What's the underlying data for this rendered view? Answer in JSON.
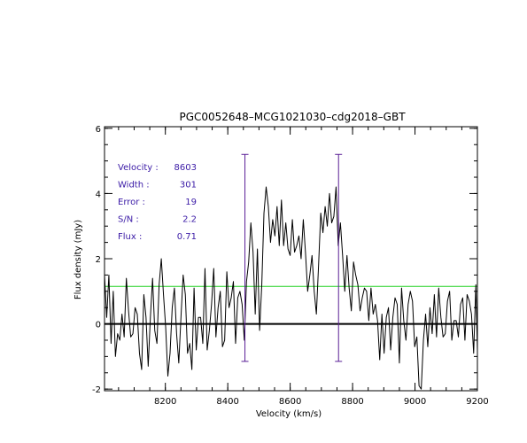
{
  "chart_data": {
    "type": "line",
    "title": "PGC0052648–MCG1021030–cdg2018–GBT",
    "xlabel": "Velocity (km/s)",
    "ylabel": "Flux density (mJy)",
    "xlim": [
      8005,
      9200
    ],
    "ylim": [
      -2.05,
      6.05
    ],
    "xticks": [
      8200,
      8400,
      8600,
      8800,
      9000,
      9200
    ],
    "yticks": [
      -2,
      0,
      2,
      4,
      6
    ],
    "x_minor_step": 50,
    "y_minor_step": 0.5,
    "zero_line": 0,
    "baseline_level": 1.15,
    "markers": [
      {
        "x": 8455,
        "y_top": 5.2,
        "y_bottom": -1.15
      },
      {
        "x": 8755,
        "y_top": 5.2,
        "y_bottom": -1.15
      }
    ],
    "series": [
      {
        "x": [
          8005,
          8012,
          8019,
          8026,
          8033,
          8040,
          8047,
          8054,
          8061,
          8068,
          8075,
          8082,
          8089,
          8096,
          8103,
          8110,
          8117,
          8124,
          8131,
          8138,
          8145,
          8152,
          8159,
          8166,
          8173,
          8180,
          8187,
          8194,
          8201,
          8208,
          8215,
          8222,
          8229,
          8236,
          8243,
          8250,
          8257,
          8264,
          8271,
          8278,
          8285,
          8292,
          8299,
          8306,
          8313,
          8320,
          8327,
          8334,
          8341,
          8348,
          8355,
          8362,
          8369,
          8376,
          8383,
          8390,
          8397,
          8404,
          8411,
          8418,
          8425,
          8432,
          8439,
          8446,
          8453,
          8460,
          8467,
          8474,
          8481,
          8488,
          8495,
          8502,
          8509,
          8516,
          8523,
          8530,
          8537,
          8544,
          8551,
          8558,
          8565,
          8572,
          8579,
          8586,
          8593,
          8600,
          8607,
          8614,
          8621,
          8628,
          8635,
          8642,
          8649,
          8656,
          8663,
          8670,
          8677,
          8684,
          8691,
          8698,
          8705,
          8712,
          8719,
          8726,
          8733,
          8740,
          8747,
          8754,
          8761,
          8768,
          8775,
          8782,
          8789,
          8796,
          8803,
          8810,
          8817,
          8824,
          8831,
          8838,
          8845,
          8852,
          8859,
          8866,
          8873,
          8880,
          8887,
          8894,
          8901,
          8908,
          8915,
          8922,
          8929,
          8936,
          8943,
          8950,
          8957,
          8964,
          8971,
          8978,
          8985,
          8992,
          8999,
          9006,
          9013,
          9020,
          9027,
          9034,
          9041,
          9048,
          9055,
          9062,
          9069,
          9076,
          9083,
          9090,
          9097,
          9104,
          9111,
          9118,
          9125,
          9132,
          9139,
          9146,
          9153,
          9160,
          9167,
          9174,
          9181,
          9188,
          9195,
          9200
        ],
        "y": [
          1.5,
          0.2,
          1.5,
          -0.6,
          1.0,
          -1.0,
          -0.3,
          -0.5,
          0.3,
          -0.4,
          1.4,
          0.4,
          -0.4,
          -0.3,
          0.5,
          0.3,
          -0.9,
          -1.4,
          0.9,
          0.2,
          -1.3,
          0.2,
          1.4,
          -0.2,
          -0.6,
          1.2,
          2.0,
          0.9,
          -0.1,
          -1.6,
          -0.9,
          0.5,
          1.1,
          -0.3,
          -1.2,
          0.2,
          1.5,
          0.9,
          -0.9,
          -0.6,
          -1.4,
          1.1,
          -0.8,
          0.2,
          0.2,
          -0.6,
          1.7,
          -0.8,
          -0.2,
          0.6,
          1.7,
          -0.4,
          0.5,
          1.0,
          -0.7,
          -0.5,
          1.6,
          0.5,
          0.8,
          1.3,
          -0.6,
          0.8,
          1.0,
          0.6,
          -0.5,
          1.3,
          1.9,
          3.1,
          2.2,
          0.3,
          2.3,
          -0.2,
          1.2,
          3.4,
          4.2,
          3.6,
          2.5,
          3.2,
          2.7,
          3.6,
          2.4,
          3.8,
          2.4,
          3.1,
          2.3,
          2.1,
          3.2,
          2.2,
          2.4,
          2.7,
          2.0,
          3.2,
          2.2,
          1.0,
          1.5,
          2.1,
          1.0,
          0.3,
          1.8,
          3.4,
          2.8,
          3.6,
          3.0,
          4.0,
          3.1,
          3.3,
          4.2,
          2.4,
          3.1,
          2.1,
          1.0,
          2.1,
          1.1,
          0.4,
          1.9,
          1.5,
          1.2,
          0.4,
          0.8,
          1.1,
          1.0,
          0.1,
          1.1,
          0.3,
          0.6,
          0.1,
          -1.1,
          0.3,
          -0.9,
          0.2,
          0.5,
          -0.8,
          0.2,
          0.8,
          0.6,
          -1.2,
          1.1,
          0.1,
          -0.5,
          0.6,
          1.0,
          0.7,
          -0.7,
          -0.4,
          -1.9,
          -2.0,
          -0.5,
          0.3,
          -0.7,
          0.5,
          -0.3,
          0.9,
          -0.4,
          1.1,
          0.2,
          -0.4,
          -0.3,
          0.7,
          1.0,
          -0.5,
          0.1,
          0.1,
          -0.4,
          0.6,
          0.8,
          -0.5,
          0.9,
          0.7,
          0.3,
          -0.9,
          1.2,
          -0.8
        ]
      }
    ],
    "info_panel": [
      {
        "label": "Velocity :",
        "value": "8603"
      },
      {
        "label": "Width    :",
        "value": "301"
      },
      {
        "label": "Error    :",
        "value": "19"
      },
      {
        "label": "S/N      :",
        "value": "2.2"
      },
      {
        "label": "Flux     :",
        "value": "0.71"
      }
    ]
  },
  "colors": {
    "axis": "#000000",
    "spectrum": "#000000",
    "baseline": "#1fd01f",
    "marker": "#5a1e96",
    "info_text": "#3a1aa6"
  }
}
